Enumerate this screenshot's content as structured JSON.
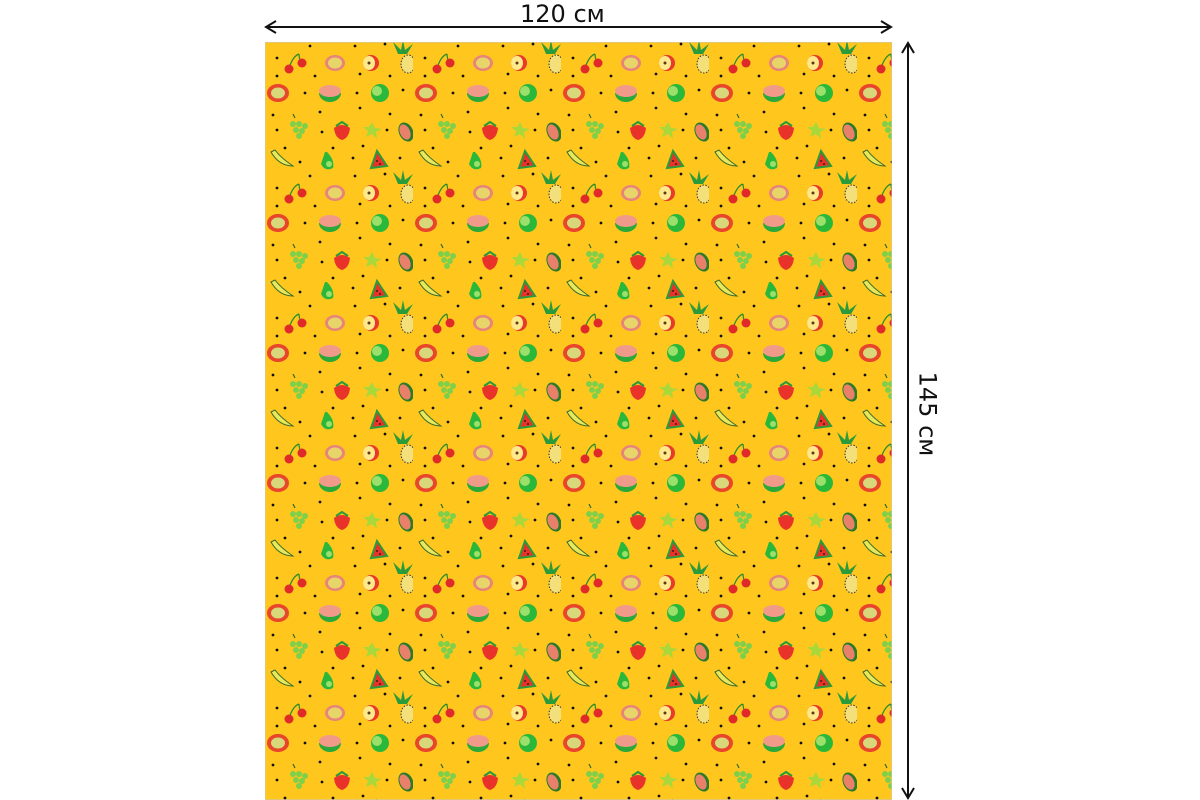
{
  "dimensions": {
    "width_label": "120 см",
    "height_label": "145 см"
  },
  "fabric": {
    "background_color": "#FFC61E",
    "dot_color": "#111111",
    "motifs": [
      "cherry",
      "passion-fruit",
      "apple",
      "pineapple",
      "orange-half",
      "grapefruit",
      "lime",
      "grapes",
      "strawberry",
      "starfruit",
      "papaya",
      "banana",
      "pear",
      "watermelon"
    ]
  }
}
